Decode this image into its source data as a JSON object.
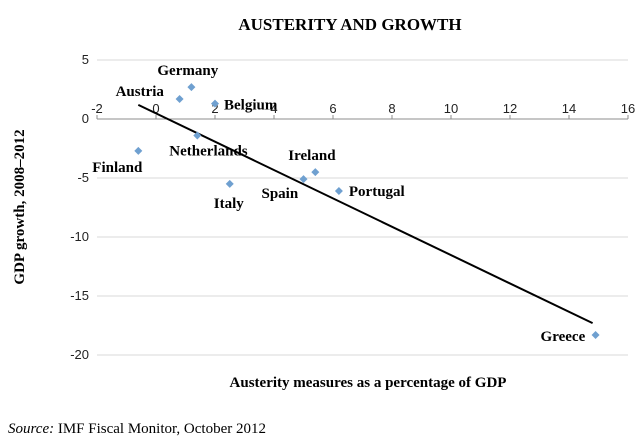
{
  "chart_data": {
    "type": "scatter",
    "title": "AUSTERITY AND GROWTH",
    "xlabel": "Austerity measures as a percentage of GDP",
    "ylabel": "GDP growth, 2008–2012",
    "xlim": [
      -2,
      16
    ],
    "ylim": [
      -20,
      5
    ],
    "xticks": [
      -2,
      0,
      2,
      4,
      6,
      8,
      10,
      12,
      14,
      16
    ],
    "yticks": [
      5,
      0,
      -5,
      -10,
      -15,
      -20
    ],
    "xtick_labels": [
      "-2",
      "0",
      "2",
      "4",
      "6",
      "8",
      "10",
      "12",
      "14",
      "16"
    ],
    "ytick_labels": [
      "5",
      "0",
      "-5",
      "-10",
      "-15",
      "-20"
    ],
    "grid": true,
    "marker_color": "#6fa0d0",
    "trendline_color": "#000000",
    "points": [
      {
        "label": "Germany",
        "x": 1.2,
        "y": 2.7
      },
      {
        "label": "Austria",
        "x": 0.8,
        "y": 1.7
      },
      {
        "label": "Belgium",
        "x": 2.0,
        "y": 1.3
      },
      {
        "label": "Netherlands",
        "x": 1.4,
        "y": -1.4
      },
      {
        "label": "Finland",
        "x": -0.6,
        "y": -2.7
      },
      {
        "label": "Italy",
        "x": 2.5,
        "y": -5.5
      },
      {
        "label": "Spain",
        "x": 5.0,
        "y": -5.1
      },
      {
        "label": "Ireland",
        "x": 5.4,
        "y": -4.5
      },
      {
        "label": "Portugal",
        "x": 6.2,
        "y": -6.1
      },
      {
        "label": "Greece",
        "x": 14.9,
        "y": -18.3
      }
    ],
    "trendline": [
      {
        "x": -0.6,
        "y": 1.2
      },
      {
        "x": 14.8,
        "y": -17.3
      }
    ]
  },
  "source": {
    "prefix": "Source:",
    "text": "IMF Fiscal Monitor, October 2012"
  }
}
